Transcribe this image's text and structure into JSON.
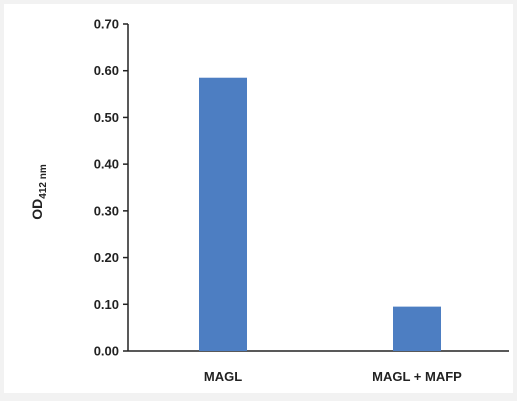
{
  "chart_data": {
    "type": "bar",
    "categories": [
      "MAGL",
      "MAGL + MAFP"
    ],
    "values": [
      0.585,
      0.095
    ],
    "ylabel": "OD",
    "ylabel_subscript": "412 nm",
    "xlabel": "",
    "title": "",
    "ylim": [
      0,
      0.7
    ],
    "yticks": [
      "0.00",
      "0.10",
      "0.20",
      "0.30",
      "0.40",
      "0.50",
      "0.60",
      "0.70"
    ],
    "bar_color": "#4d7ec2",
    "grid": false,
    "legend": "none"
  }
}
